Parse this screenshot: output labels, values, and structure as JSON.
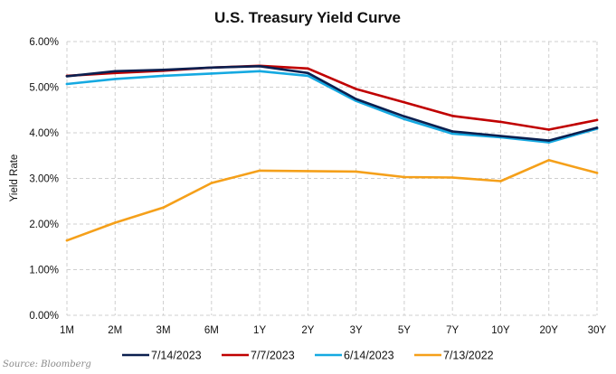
{
  "chart_data": {
    "type": "line",
    "title": "U.S. Treasury Yield Curve",
    "xlabel": "",
    "ylabel": "Yield Rate",
    "categories": [
      "1M",
      "2M",
      "3M",
      "6M",
      "1Y",
      "2Y",
      "3Y",
      "5Y",
      "7Y",
      "10Y",
      "20Y",
      "30Y"
    ],
    "ylim": [
      0,
      6
    ],
    "yticks": [
      "0.00%",
      "1.00%",
      "2.00%",
      "3.00%",
      "4.00%",
      "5.00%",
      "6.00%"
    ],
    "grid": true,
    "legend_position": "bottom",
    "series": [
      {
        "name": "7/14/2023",
        "color": "#0b1f4f",
        "values": [
          5.24,
          5.35,
          5.38,
          5.43,
          5.46,
          5.31,
          4.74,
          4.36,
          4.03,
          3.93,
          3.83,
          4.11
        ]
      },
      {
        "name": "7/7/2023",
        "color": "#c00000",
        "values": [
          5.25,
          5.31,
          5.36,
          5.43,
          5.47,
          5.41,
          4.96,
          4.67,
          4.37,
          4.24,
          4.07,
          4.28
        ]
      },
      {
        "name": "6/14/2023",
        "color": "#15a9e1",
        "values": [
          5.07,
          5.18,
          5.25,
          5.3,
          5.35,
          5.25,
          4.7,
          4.3,
          3.98,
          3.9,
          3.79,
          4.09
        ]
      },
      {
        "name": "7/13/2022",
        "color": "#f5a01a",
        "values": [
          1.64,
          2.03,
          2.36,
          2.9,
          3.17,
          3.16,
          3.15,
          3.03,
          3.02,
          2.94,
          3.4,
          3.12
        ]
      }
    ]
  },
  "source": "Source: Bloomberg"
}
